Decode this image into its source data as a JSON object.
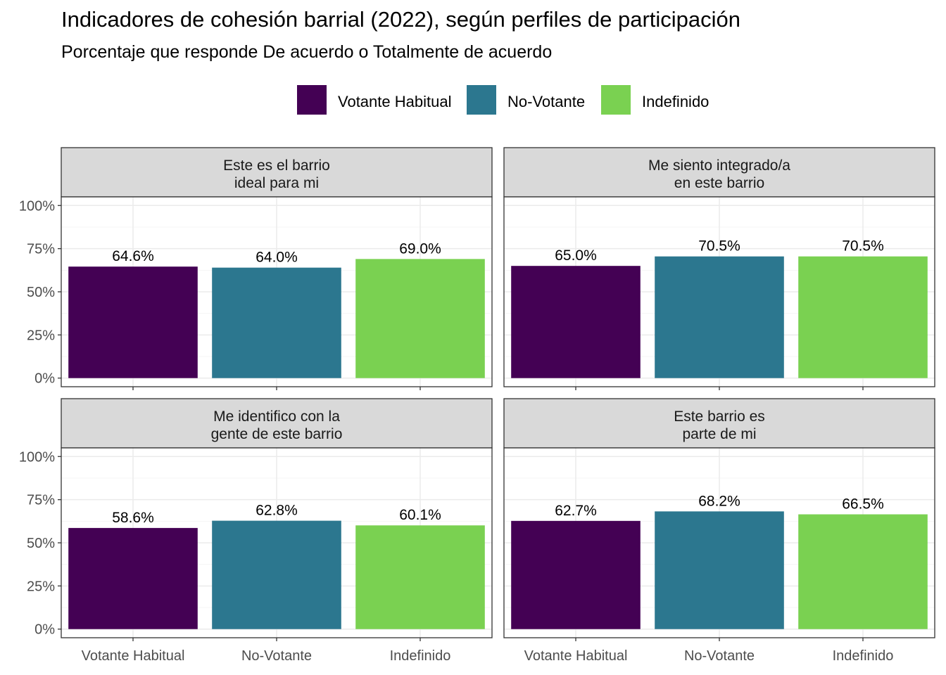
{
  "title": "Indicadores de cohesión barrial (2022), según perfiles de participación",
  "subtitle": "Porcentaje que responde De acuerdo o Totalmente de acuerdo",
  "colors": {
    "Votante Habitual": "#440154",
    "No-Votante": "#2c778f",
    "Indefinido": "#7ad151",
    "strip_bg": "#d9d9d9",
    "grid_major": "#ebebeb",
    "grid_minor": "#f5f5f5"
  },
  "chart_data": {
    "type": "bar",
    "facets": 4,
    "categories": [
      "Votante Habitual",
      "No-Votante",
      "Indefinido"
    ],
    "legend": [
      "Votante Habitual",
      "No-Votante",
      "Indefinido"
    ],
    "legend_position": "top",
    "ylim": [
      0,
      100
    ],
    "yticks": [
      0,
      25,
      50,
      75,
      100
    ],
    "ytick_labels": [
      "0%",
      "25%",
      "50%",
      "75%",
      "100%"
    ],
    "panels": [
      {
        "strip": [
          "Este es el barrio",
          "ideal para mi"
        ],
        "values": [
          64.6,
          64.0,
          69.0
        ],
        "labels": [
          "64.6%",
          "64.0%",
          "69.0%"
        ]
      },
      {
        "strip": [
          "Me siento integrado/a",
          "en este barrio"
        ],
        "values": [
          65.0,
          70.5,
          70.5
        ],
        "labels": [
          "65.0%",
          "70.5%",
          "70.5%"
        ]
      },
      {
        "strip": [
          "Me identifico con la",
          "gente de este barrio"
        ],
        "values": [
          58.6,
          62.8,
          60.1
        ],
        "labels": [
          "58.6%",
          "62.8%",
          "60.1%"
        ]
      },
      {
        "strip": [
          "Este barrio es",
          "parte de mi"
        ],
        "values": [
          62.7,
          68.2,
          66.5
        ],
        "labels": [
          "62.7%",
          "68.2%",
          "66.5%"
        ]
      }
    ]
  }
}
